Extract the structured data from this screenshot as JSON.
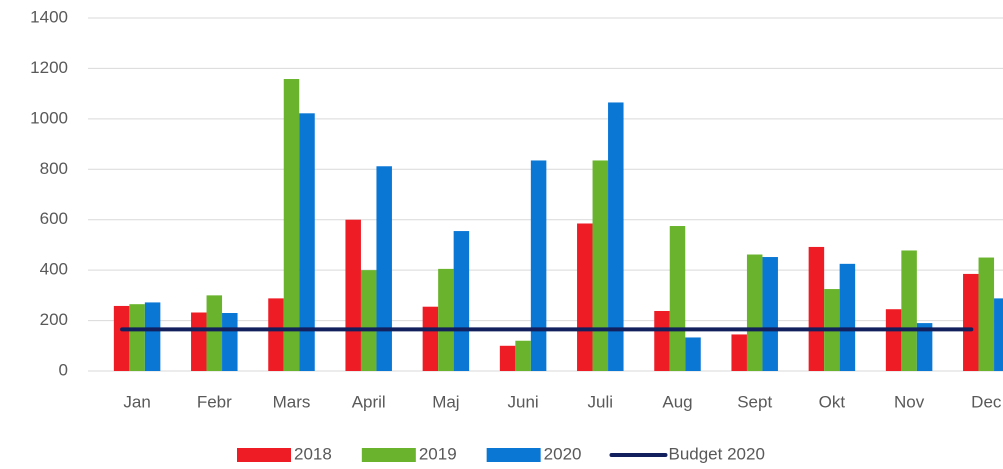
{
  "chart_data": {
    "type": "bar",
    "categories": [
      "Jan",
      "Febr",
      "Mars",
      "April",
      "Maj",
      "Juni",
      "Juli",
      "Aug",
      "Sept",
      "Okt",
      "Nov",
      "Dec"
    ],
    "series": [
      {
        "name": "2018",
        "color": "#ee1c25",
        "values": [
          258,
          232,
          288,
          600,
          255,
          100,
          585,
          238,
          145,
          492,
          245,
          385
        ]
      },
      {
        "name": "2019",
        "color": "#6ab42d",
        "values": [
          265,
          300,
          1158,
          400,
          405,
          120,
          835,
          575,
          462,
          325,
          478,
          450
        ]
      },
      {
        "name": "2020",
        "color": "#0a77d5",
        "values": [
          272,
          230,
          1022,
          812,
          555,
          835,
          1065,
          133,
          452,
          425,
          190,
          288
        ]
      },
      {
        "name": "Budget 2020",
        "color": "#12205e",
        "type": "line",
        "values": [
          165,
          165,
          165,
          165,
          165,
          165,
          165,
          165,
          165,
          165,
          165,
          165
        ]
      }
    ],
    "ylim": [
      0,
      1400
    ],
    "yticks": [
      0,
      200,
      400,
      600,
      800,
      1000,
      1200,
      1400
    ],
    "grid": true,
    "legend": "bottom"
  }
}
